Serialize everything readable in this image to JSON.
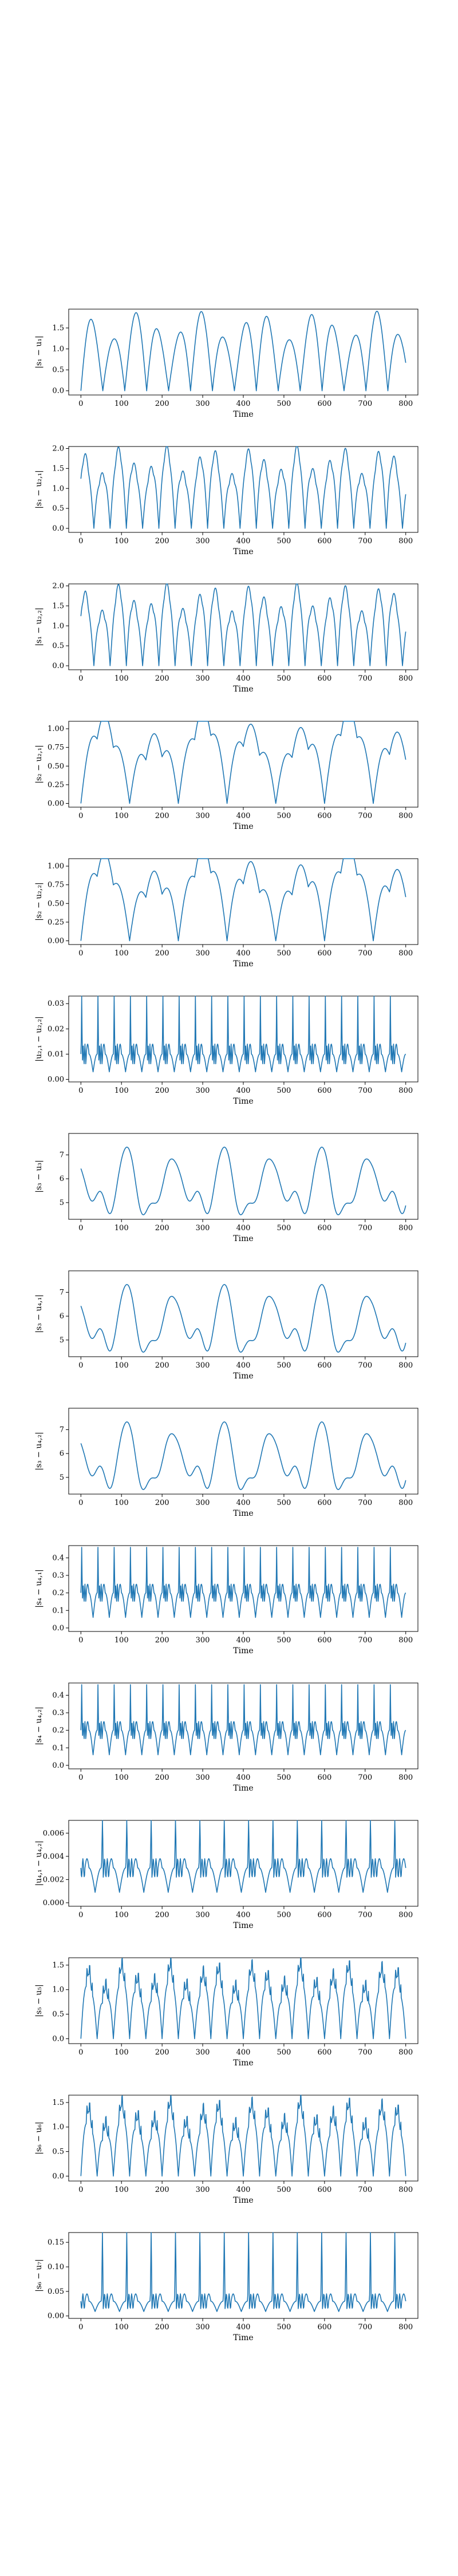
{
  "colors": {
    "line": "#1f77b4",
    "axes": "#000000",
    "background": "#ffffff"
  },
  "chart_data": [
    {
      "type": "line",
      "xlabel": "Time",
      "ylabel": "|s₁ − u₁|",
      "xlim": [
        -30,
        830
      ],
      "ylim": [
        -0.1,
        1.95
      ],
      "xticks": [
        0,
        100,
        200,
        300,
        400,
        500,
        600,
        700,
        800
      ],
      "yticks": [
        0.0,
        0.5,
        1.0,
        1.5
      ],
      "ytick_labels": [
        "0.0",
        "0.5",
        "1.0",
        "1.5"
      ],
      "wave": {
        "kind": "rect_sin",
        "period": 54,
        "phase": 0,
        "amplitude": 1.9,
        "offset": 0,
        "harmonic": 0,
        "spike": 0
      },
      "grid": false
    },
    {
      "type": "line",
      "xlabel": "Time",
      "ylabel": "|s₁ − u₂,₁|",
      "xlim": [
        -30,
        830
      ],
      "ylim": [
        -0.1,
        2.05
      ],
      "xticks": [
        0,
        100,
        200,
        300,
        400,
        500,
        600,
        700,
        800
      ],
      "yticks": [
        0.0,
        0.5,
        1.0,
        1.5,
        2.0
      ],
      "ytick_labels": [
        "0.0",
        "0.5",
        "1.0",
        "1.5",
        "2.0"
      ],
      "wave": {
        "kind": "rect_sin",
        "period": 40,
        "phase": 8,
        "amplitude": 1.95,
        "offset": 0,
        "harmonic": 0.25,
        "spike": 0
      },
      "grid": false
    },
    {
      "type": "line",
      "xlabel": "Time",
      "ylabel": "|s₁ − u₂,₂|",
      "xlim": [
        -30,
        830
      ],
      "ylim": [
        -0.1,
        2.05
      ],
      "xticks": [
        0,
        100,
        200,
        300,
        400,
        500,
        600,
        700,
        800
      ],
      "yticks": [
        0.0,
        0.5,
        1.0,
        1.5,
        2.0
      ],
      "ytick_labels": [
        "0.0",
        "0.5",
        "1.0",
        "1.5",
        "2.0"
      ],
      "wave": {
        "kind": "rect_sin",
        "period": 40,
        "phase": 8,
        "amplitude": 1.95,
        "offset": 0,
        "harmonic": 0.25,
        "spike": 0
      },
      "grid": false
    },
    {
      "type": "line",
      "xlabel": "Time",
      "ylabel": "|s₂ − u₂,₁|",
      "xlim": [
        -30,
        830
      ],
      "ylim": [
        -0.05,
        1.1
      ],
      "xticks": [
        0,
        100,
        200,
        300,
        400,
        500,
        600,
        700,
        800
      ],
      "yticks": [
        0.0,
        0.25,
        0.5,
        0.75,
        1.0
      ],
      "ytick_labels": [
        "0.00",
        "0.25",
        "0.50",
        "0.75",
        "1.00"
      ],
      "wave": {
        "kind": "rect_sin",
        "period": 120,
        "phase": 0,
        "amplitude": 1.05,
        "offset": 0,
        "harmonic": 0.5,
        "spike": 0
      },
      "grid": false
    },
    {
      "type": "line",
      "xlabel": "Time",
      "ylabel": "|s₂ − u₂,₂|",
      "xlim": [
        -30,
        830
      ],
      "ylim": [
        -0.05,
        1.1
      ],
      "xticks": [
        0,
        100,
        200,
        300,
        400,
        500,
        600,
        700,
        800
      ],
      "yticks": [
        0.0,
        0.25,
        0.5,
        0.75,
        1.0
      ],
      "ytick_labels": [
        "0.00",
        "0.25",
        "0.50",
        "0.75",
        "1.00"
      ],
      "wave": {
        "kind": "rect_sin",
        "period": 120,
        "phase": 0,
        "amplitude": 1.05,
        "offset": 0,
        "harmonic": 0.5,
        "spike": 0
      },
      "grid": false
    },
    {
      "type": "line",
      "xlabel": "Time",
      "ylabel": "|u₂,₁ − u₂,₂|",
      "xlim": [
        -30,
        830
      ],
      "ylim": [
        -0.001,
        0.033
      ],
      "xticks": [
        0,
        100,
        200,
        300,
        400,
        500,
        600,
        700,
        800
      ],
      "yticks": [
        0.0,
        0.01,
        0.02,
        0.03
      ],
      "ytick_labels": [
        "0.00",
        "0.01",
        "0.02",
        "0.03"
      ],
      "wave": {
        "kind": "spikes",
        "period": 40,
        "phase": 0,
        "amplitude": 0.031,
        "offset": 0.01,
        "harmonic": 0.004,
        "spike": 1
      },
      "grid": false
    },
    {
      "type": "line",
      "xlabel": "Time",
      "ylabel": "|s₃ − u₃|",
      "xlim": [
        -30,
        830
      ],
      "ylim": [
        4.3,
        7.9
      ],
      "xticks": [
        0,
        100,
        200,
        300,
        400,
        500,
        600,
        700,
        800
      ],
      "yticks": [
        5,
        6,
        7
      ],
      "ytick_labels": [
        "5",
        "6",
        "7"
      ],
      "wave": {
        "kind": "smooth",
        "period": 80,
        "phase": 40,
        "amplitude": 3.0,
        "offset": 4.6,
        "harmonic": 0.2,
        "spike": 0
      },
      "grid": false
    },
    {
      "type": "line",
      "xlabel": "Time",
      "ylabel": "|s₃ − u₄,₁|",
      "xlim": [
        -30,
        830
      ],
      "ylim": [
        4.3,
        7.9
      ],
      "xticks": [
        0,
        100,
        200,
        300,
        400,
        500,
        600,
        700,
        800
      ],
      "yticks": [
        5,
        6,
        7
      ],
      "ytick_labels": [
        "5",
        "6",
        "7"
      ],
      "wave": {
        "kind": "smooth",
        "period": 80,
        "phase": 40,
        "amplitude": 3.0,
        "offset": 4.6,
        "harmonic": 0.2,
        "spike": 0
      },
      "grid": false
    },
    {
      "type": "line",
      "xlabel": "Time",
      "ylabel": "|s₃ − u₄,₂|",
      "xlim": [
        -30,
        830
      ],
      "ylim": [
        4.3,
        7.9
      ],
      "xticks": [
        0,
        100,
        200,
        300,
        400,
        500,
        600,
        700,
        800
      ],
      "yticks": [
        5,
        6,
        7
      ],
      "ytick_labels": [
        "5",
        "6",
        "7"
      ],
      "wave": {
        "kind": "smooth",
        "period": 80,
        "phase": 40,
        "amplitude": 3.0,
        "offset": 4.6,
        "harmonic": 0.2,
        "spike": 0
      },
      "grid": false
    },
    {
      "type": "line",
      "xlabel": "Time",
      "ylabel": "|s₄ − u₄,₁|",
      "xlim": [
        -30,
        830
      ],
      "ylim": [
        -0.02,
        0.47
      ],
      "xticks": [
        0,
        100,
        200,
        300,
        400,
        500,
        600,
        700,
        800
      ],
      "yticks": [
        0.0,
        0.1,
        0.2,
        0.3,
        0.4
      ],
      "ytick_labels": [
        "0.0",
        "0.1",
        "0.2",
        "0.3",
        "0.4"
      ],
      "wave": {
        "kind": "spikes",
        "period": 40,
        "phase": 0,
        "amplitude": 0.42,
        "offset": 0.2,
        "harmonic": 0.05,
        "spike": 1
      },
      "grid": false
    },
    {
      "type": "line",
      "xlabel": "Time",
      "ylabel": "|s₄ − u₄,₂|",
      "xlim": [
        -30,
        830
      ],
      "ylim": [
        -0.02,
        0.47
      ],
      "xticks": [
        0,
        100,
        200,
        300,
        400,
        500,
        600,
        700,
        800
      ],
      "yticks": [
        0.0,
        0.1,
        0.2,
        0.3,
        0.4
      ],
      "ytick_labels": [
        "0.0",
        "0.1",
        "0.2",
        "0.3",
        "0.4"
      ],
      "wave": {
        "kind": "spikes",
        "period": 40,
        "phase": 0,
        "amplitude": 0.42,
        "offset": 0.2,
        "harmonic": 0.05,
        "spike": 1
      },
      "grid": false
    },
    {
      "type": "line",
      "xlabel": "Time",
      "ylabel": "|u₄,₁ − u₄,₂|",
      "xlim": [
        -30,
        830
      ],
      "ylim": [
        -0.0003,
        0.0071
      ],
      "xticks": [
        0,
        100,
        200,
        300,
        400,
        500,
        600,
        700,
        800
      ],
      "yticks": [
        0.0,
        0.002,
        0.004,
        0.006
      ],
      "ytick_labels": [
        "0.000",
        "0.002",
        "0.004",
        "0.006"
      ],
      "wave": {
        "kind": "spikes",
        "period": 60,
        "phase": 10,
        "amplitude": 0.0065,
        "offset": 0.003,
        "harmonic": 0.0008,
        "spike": 1
      },
      "grid": false
    },
    {
      "type": "line",
      "xlabel": "Time",
      "ylabel": "|s₅ − u₅|",
      "xlim": [
        -30,
        830
      ],
      "ylim": [
        -0.1,
        1.65
      ],
      "xticks": [
        0,
        100,
        200,
        300,
        400,
        500,
        600,
        700,
        800
      ],
      "yticks": [
        0.0,
        0.5,
        1.0,
        1.5
      ],
      "ytick_labels": [
        "0.0",
        "0.5",
        "1.0",
        "1.5"
      ],
      "wave": {
        "kind": "rect_sin",
        "period": 40,
        "phase": 0,
        "amplitude": 1.3,
        "offset": 0,
        "harmonic": 0.3,
        "spike": 0.25
      },
      "grid": false
    },
    {
      "type": "line",
      "xlabel": "Time",
      "ylabel": "|s₆ − u₆|",
      "xlim": [
        -30,
        830
      ],
      "ylim": [
        -0.1,
        1.65
      ],
      "xticks": [
        0,
        100,
        200,
        300,
        400,
        500,
        600,
        700,
        800
      ],
      "yticks": [
        0.0,
        0.5,
        1.0,
        1.5
      ],
      "ytick_labels": [
        "0.0",
        "0.5",
        "1.0",
        "1.5"
      ],
      "wave": {
        "kind": "rect_sin",
        "period": 40,
        "phase": 0,
        "amplitude": 1.3,
        "offset": 0,
        "harmonic": 0.3,
        "spike": 0.25
      },
      "grid": false
    },
    {
      "type": "line",
      "xlabel": "Time",
      "ylabel": "|s₆ − u₇|",
      "xlim": [
        -30,
        830
      ],
      "ylim": [
        -0.005,
        0.17
      ],
      "xticks": [
        0,
        100,
        200,
        300,
        400,
        500,
        600,
        700,
        800
      ],
      "yticks": [
        0.0,
        0.05,
        0.1,
        0.15
      ],
      "ytick_labels": [
        "0.00",
        "0.05",
        "0.10",
        "0.15"
      ],
      "wave": {
        "kind": "spikes",
        "period": 60,
        "phase": 10,
        "amplitude": 0.16,
        "offset": 0.03,
        "harmonic": 0.015,
        "spike": 1
      },
      "grid": false
    }
  ]
}
